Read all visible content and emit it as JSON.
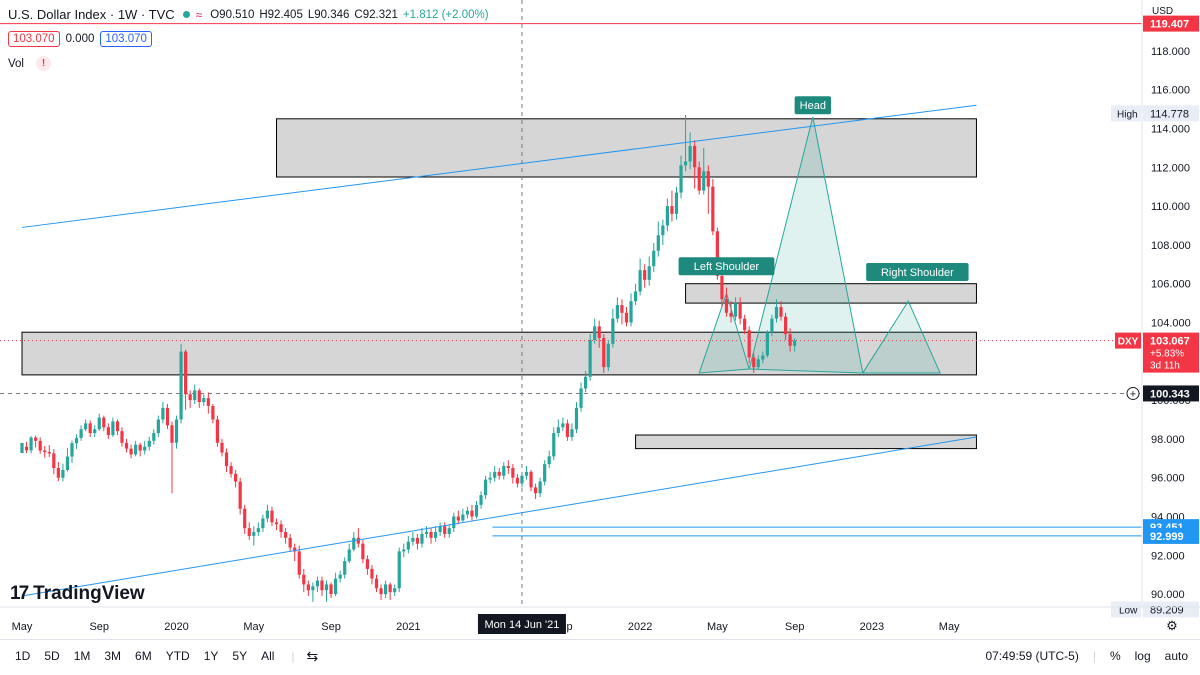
{
  "header": {
    "title": "U.S. Dollar Index · 1W · TVC",
    "ohlc": {
      "o": "O90.510",
      "h": "H92.405",
      "l": "L90.346",
      "c": "C92.321",
      "chg": "+1.812 (+2.00%)"
    },
    "price_left": "103.070",
    "price_mid": "0.000",
    "price_right": "103.070",
    "vol_label": "Vol",
    "vol_warn": "!",
    "currency": "USD"
  },
  "colors": {
    "up": "#26a69a",
    "down": "#f23645",
    "zone_fill": "#cfcfcf",
    "trend": "#2196f3",
    "pattern": "#26a69a"
  },
  "chart_data": {
    "type": "candlestick",
    "ylim": [
      89,
      119.5
    ],
    "x_ticks": [
      "May",
      "Sep",
      "2020",
      "May",
      "Sep",
      "2021",
      "Sep",
      "2022",
      "May",
      "Sep",
      "2023",
      "May"
    ],
    "x_ticks_week": [
      0,
      17,
      34,
      51,
      68,
      85,
      119,
      136,
      153,
      170,
      187,
      204
    ],
    "y_ticks": [
      "90.000",
      "92.000",
      "94.000",
      "96.000",
      "98.000",
      "100.000",
      "104.000",
      "106.000",
      "108.000",
      "110.000",
      "112.000",
      "114.000",
      "116.000",
      "118.000"
    ],
    "y_tick_values": [
      90,
      92,
      94,
      96,
      98,
      100,
      104,
      106,
      108,
      110,
      112,
      114,
      116,
      118
    ],
    "crosshair_label": "Mon 14 Jun '21",
    "crosshair_week": 110,
    "crosshair_price": 100.343,
    "crosshair_price_label": "100.343",
    "current_price": {
      "symbol": "DXY",
      "value": "103.067",
      "change": "+5.83%",
      "countdown": "3d 11h",
      "value_num": 103.067
    },
    "top_line_label": "119.407",
    "top_line_value": 119.407,
    "high": {
      "label": "High",
      "value": "114.778",
      "value_num": 114.778
    },
    "low": {
      "label": "Low",
      "value": "89.209",
      "value_num": 89.209
    },
    "hlines": [
      {
        "value": 93.451,
        "label": "93.451"
      },
      {
        "value": 92.999,
        "label": "92.999"
      }
    ],
    "zones": [
      {
        "x0": 56,
        "x1": 210,
        "y0": 111.5,
        "y1": 114.5
      },
      {
        "x0": 0,
        "x1": 210,
        "y0": 101.3,
        "y1": 103.5
      },
      {
        "x0": 146,
        "x1": 210,
        "y0": 105,
        "y1": 106
      },
      {
        "x0": 135,
        "x1": 210,
        "y0": 97.5,
        "y1": 98.2
      }
    ],
    "trendlines": [
      {
        "w0": 0,
        "p0": 108.9,
        "w1": 210,
        "p1": 115.2
      },
      {
        "w0": 0,
        "p0": 89.9,
        "w1": 210,
        "p1": 98.1
      }
    ],
    "pattern_labels": [
      "Left Shoulder",
      "Head",
      "Right Shoulder"
    ],
    "pattern": {
      "ls": [
        [
          149,
          101.4
        ],
        [
          155,
          105.5
        ],
        [
          160,
          101.6
        ]
      ],
      "head": [
        [
          160,
          101.6
        ],
        [
          174,
          114.6
        ],
        [
          185,
          101.4
        ]
      ],
      "rs": [
        [
          185,
          101.4
        ],
        [
          195,
          105.1
        ],
        [
          202,
          101.4
        ]
      ]
    },
    "candles": [
      [
        97.27,
        97.79,
        97.6,
        97.45
      ],
      [
        97.6,
        97.41,
        97.85,
        97.27
      ],
      [
        97.41,
        98.07,
        98.14,
        97.26
      ],
      [
        98.07,
        97.9,
        98.17,
        97.55
      ],
      [
        97.9,
        97.4,
        98.08,
        97.23
      ],
      [
        97.4,
        97.32,
        97.64,
        97.03
      ],
      [
        97.32,
        97.25,
        97.68,
        97.07
      ],
      [
        97.25,
        96.5,
        97.48,
        96.18
      ],
      [
        96.5,
        96.0,
        96.81,
        95.82
      ],
      [
        96.0,
        96.4,
        96.72,
        95.81
      ],
      [
        96.4,
        97.09,
        97.53,
        96.32
      ],
      [
        97.09,
        97.78,
        97.9,
        96.76
      ],
      [
        97.78,
        98.05,
        98.24,
        97.48
      ],
      [
        98.05,
        98.5,
        98.7,
        97.9
      ],
      [
        98.5,
        98.8,
        99.0,
        98.4
      ],
      [
        98.8,
        98.3,
        98.95,
        98.1
      ],
      [
        98.3,
        98.5,
        98.7,
        98.1
      ],
      [
        98.5,
        99.1,
        99.3,
        98.4
      ],
      [
        99.1,
        98.6,
        99.2,
        98.4
      ],
      [
        98.6,
        98.2,
        98.8,
        98.0
      ],
      [
        98.2,
        98.9,
        99.1,
        98.1
      ],
      [
        98.9,
        98.4,
        99.0,
        98.2
      ],
      [
        98.4,
        97.8,
        98.6,
        97.6
      ],
      [
        97.8,
        97.5,
        98.0,
        97.3
      ],
      [
        97.5,
        97.2,
        97.7,
        97.0
      ],
      [
        97.2,
        97.7,
        97.9,
        97.1
      ],
      [
        97.7,
        97.4,
        97.8,
        97.1
      ],
      [
        97.4,
        97.6,
        97.9,
        97.2
      ],
      [
        97.6,
        97.9,
        98.1,
        97.4
      ],
      [
        97.9,
        98.3,
        98.5,
        97.7
      ],
      [
        98.3,
        99.0,
        99.2,
        98.1
      ],
      [
        99.0,
        99.6,
        99.9,
        98.8
      ],
      [
        99.6,
        98.7,
        99.8,
        98.5
      ],
      [
        98.7,
        97.8,
        98.9,
        95.2
      ],
      [
        97.8,
        99.0,
        99.2,
        97.5
      ],
      [
        99.0,
        102.5,
        102.9,
        98.8
      ],
      [
        102.5,
        100.3,
        102.6,
        99.5
      ],
      [
        100.3,
        100.0,
        100.5,
        99.6
      ],
      [
        100.0,
        100.5,
        100.8,
        99.8
      ],
      [
        100.5,
        99.9,
        100.6,
        99.6
      ],
      [
        99.9,
        100.1,
        100.3,
        99.7
      ],
      [
        100.1,
        99.7,
        100.4,
        99.3
      ],
      [
        99.7,
        99.0,
        99.8,
        98.8
      ],
      [
        99.0,
        97.8,
        99.2,
        97.6
      ],
      [
        97.8,
        97.3,
        98.0,
        97.1
      ],
      [
        97.3,
        96.6,
        97.5,
        96.3
      ],
      [
        96.6,
        96.2,
        96.8,
        96.0
      ],
      [
        96.2,
        95.8,
        96.4,
        95.5
      ],
      [
        95.8,
        94.4,
        96.0,
        94.1
      ],
      [
        94.4,
        93.4,
        94.6,
        93.1
      ],
      [
        93.4,
        93.0,
        93.7,
        92.8
      ],
      [
        93.0,
        93.2,
        93.5,
        92.5
      ],
      [
        93.2,
        93.4,
        93.7,
        93.0
      ],
      [
        93.4,
        93.9,
        94.1,
        93.2
      ],
      [
        93.9,
        94.3,
        94.6,
        93.7
      ],
      [
        94.3,
        93.7,
        94.5,
        93.5
      ],
      [
        93.7,
        93.6,
        93.9,
        93.3
      ],
      [
        93.6,
        93.2,
        93.8,
        92.9
      ],
      [
        93.2,
        92.9,
        93.4,
        92.6
      ],
      [
        92.9,
        92.4,
        93.1,
        92.2
      ],
      [
        92.4,
        92.2,
        92.6,
        91.7
      ],
      [
        92.2,
        91.0,
        92.5,
        90.8
      ],
      [
        91.0,
        90.5,
        91.3,
        90.1
      ],
      [
        90.5,
        90.2,
        90.7,
        89.9
      ],
      [
        90.2,
        90.4,
        90.6,
        89.6
      ],
      [
        90.4,
        90.7,
        90.9,
        90.1
      ],
      [
        90.7,
        90.2,
        90.9,
        89.9
      ],
      [
        90.2,
        90.5,
        90.7,
        89.6
      ],
      [
        90.5,
        90.0,
        90.6,
        89.8
      ],
      [
        90.0,
        90.8,
        91.1,
        89.9
      ],
      [
        90.8,
        91.0,
        91.2,
        90.6
      ],
      [
        91.0,
        91.7,
        91.9,
        90.8
      ],
      [
        91.7,
        92.3,
        92.6,
        91.6
      ],
      [
        92.3,
        92.9,
        93.2,
        92.2
      ],
      [
        92.9,
        92.6,
        93.4,
        92.4
      ],
      [
        92.6,
        91.8,
        92.8,
        91.6
      ],
      [
        91.8,
        91.3,
        92.0,
        91.0
      ],
      [
        91.3,
        90.8,
        91.5,
        90.5
      ],
      [
        90.8,
        90.3,
        91.0,
        90.1
      ],
      [
        90.3,
        90.0,
        90.5,
        89.7
      ],
      [
        90.0,
        90.5,
        90.7,
        89.8
      ],
      [
        90.5,
        90.1,
        90.6,
        89.7
      ],
      [
        90.1,
        90.3,
        90.5,
        89.9
      ],
      [
        90.3,
        92.2,
        92.4,
        90.1
      ],
      [
        92.2,
        92.3,
        92.6,
        91.9
      ],
      [
        92.3,
        92.7,
        93.0,
        92.1
      ],
      [
        92.7,
        92.9,
        93.2,
        92.5
      ],
      [
        92.9,
        92.6,
        93.1,
        92.3
      ],
      [
        92.6,
        93.1,
        93.4,
        92.4
      ],
      [
        93.1,
        93.2,
        93.5,
        92.9
      ],
      [
        93.2,
        92.9,
        93.4,
        92.6
      ],
      [
        92.9,
        93.2,
        93.5,
        92.7
      ],
      [
        93.2,
        93.5,
        93.7,
        93.0
      ],
      [
        93.5,
        93.1,
        93.7,
        92.9
      ],
      [
        93.1,
        93.4,
        93.6,
        92.9
      ],
      [
        93.4,
        94.0,
        94.2,
        93.2
      ],
      [
        94.0,
        93.8,
        94.3,
        93.6
      ],
      [
        93.8,
        94.1,
        94.4,
        93.7
      ],
      [
        94.1,
        94.3,
        94.5,
        93.9
      ],
      [
        94.3,
        94.0,
        94.6,
        93.8
      ],
      [
        94.0,
        94.6,
        94.8,
        93.9
      ],
      [
        94.6,
        95.1,
        95.3,
        94.4
      ],
      [
        95.1,
        95.9,
        96.1,
        94.9
      ],
      [
        95.9,
        96.0,
        96.3,
        95.7
      ],
      [
        96.0,
        96.3,
        96.6,
        95.8
      ],
      [
        96.3,
        96.1,
        96.5,
        95.9
      ],
      [
        96.1,
        96.6,
        96.8,
        95.9
      ],
      [
        96.6,
        96.5,
        96.9,
        96.2
      ],
      [
        96.5,
        96.0,
        96.7,
        95.7
      ],
      [
        96.0,
        95.7,
        96.2,
        95.5
      ],
      [
        95.7,
        96.1,
        96.3,
        95.5
      ],
      [
        96.1,
        96.3,
        96.6,
        95.9
      ],
      [
        96.3,
        95.5,
        96.4,
        95.3
      ],
      [
        95.5,
        95.2,
        95.7,
        94.9
      ],
      [
        95.2,
        95.8,
        96.0,
        95.0
      ],
      [
        95.8,
        96.7,
        96.9,
        95.6
      ],
      [
        96.7,
        97.1,
        97.4,
        96.5
      ],
      [
        97.1,
        98.3,
        98.6,
        96.9
      ],
      [
        98.3,
        98.6,
        99.0,
        98.1
      ],
      [
        98.6,
        98.8,
        99.1,
        98.4
      ],
      [
        98.8,
        98.1,
        99.0,
        97.9
      ],
      [
        98.1,
        98.5,
        98.8,
        97.9
      ],
      [
        98.5,
        99.6,
        99.9,
        98.3
      ],
      [
        99.6,
        100.6,
        100.9,
        99.4
      ],
      [
        100.6,
        101.2,
        101.5,
        100.4
      ],
      [
        101.2,
        103.1,
        103.4,
        101.0
      ],
      [
        103.1,
        103.8,
        104.2,
        102.9
      ],
      [
        103.8,
        103.2,
        104.1,
        102.7
      ],
      [
        103.2,
        101.7,
        103.4,
        101.4
      ],
      [
        101.7,
        102.9,
        103.1,
        101.5
      ],
      [
        102.9,
        104.2,
        104.7,
        102.7
      ],
      [
        104.2,
        104.9,
        105.3,
        104.0
      ],
      [
        104.9,
        104.5,
        105.2,
        103.9
      ],
      [
        104.5,
        104.0,
        104.8,
        103.8
      ],
      [
        104.0,
        105.1,
        105.5,
        103.8
      ],
      [
        105.1,
        105.6,
        106.0,
        104.9
      ],
      [
        105.6,
        106.7,
        107.3,
        105.4
      ],
      [
        106.7,
        106.2,
        107.0,
        105.8
      ],
      [
        106.2,
        106.9,
        107.4,
        105.9
      ],
      [
        106.9,
        107.7,
        108.1,
        106.6
      ],
      [
        107.7,
        108.5,
        109.2,
        107.4
      ],
      [
        108.5,
        109.0,
        109.3,
        108.0
      ],
      [
        109.0,
        110.0,
        110.4,
        108.7
      ],
      [
        110.0,
        109.6,
        110.8,
        109.2
      ],
      [
        109.6,
        110.7,
        111.0,
        109.3
      ],
      [
        110.7,
        112.1,
        112.6,
        110.4
      ],
      [
        112.1,
        112.3,
        114.7,
        111.8
      ],
      [
        112.3,
        113.1,
        113.8,
        111.9
      ],
      [
        113.1,
        112.0,
        113.4,
        110.9
      ],
      [
        112.0,
        110.8,
        112.3,
        110.6
      ],
      [
        110.8,
        111.8,
        113.0,
        110.6
      ],
      [
        111.8,
        111.0,
        112.1,
        109.6
      ],
      [
        111.0,
        108.7,
        111.4,
        108.5
      ],
      [
        108.7,
        106.4,
        108.9,
        106.2
      ],
      [
        106.4,
        105.2,
        106.7,
        104.8
      ],
      [
        105.2,
        104.5,
        105.8,
        104.3
      ],
      [
        104.5,
        104.3,
        105.1,
        104.0
      ],
      [
        104.3,
        105.0,
        105.3,
        104.1
      ],
      [
        105.0,
        104.2,
        105.3,
        103.9
      ],
      [
        104.2,
        103.6,
        104.4,
        103.4
      ],
      [
        103.6,
        102.2,
        103.8,
        101.9
      ],
      [
        102.2,
        101.7,
        102.4,
        101.4
      ],
      [
        101.7,
        102.1,
        102.3,
        101.6
      ],
      [
        102.1,
        102.3,
        102.5,
        101.9
      ],
      [
        102.3,
        103.5,
        103.6,
        102.2
      ],
      [
        103.5,
        104.2,
        104.4,
        103.3
      ],
      [
        104.2,
        104.8,
        105.2,
        104.0
      ],
      [
        104.8,
        104.3,
        105.1,
        104.1
      ],
      [
        104.3,
        103.4,
        104.5,
        103.1
      ],
      [
        103.4,
        102.8,
        103.7,
        102.5
      ],
      [
        102.8,
        103.07,
        103.2,
        102.5
      ]
    ]
  },
  "bottom": {
    "timeframes": [
      "1D",
      "5D",
      "1M",
      "3M",
      "6M",
      "YTD",
      "1Y",
      "5Y",
      "All"
    ],
    "clock": "07:49:59 (UTC-5)",
    "pct": "%",
    "log": "log",
    "auto": "auto"
  },
  "logo": {
    "mark": "17",
    "text": "TradingView"
  }
}
